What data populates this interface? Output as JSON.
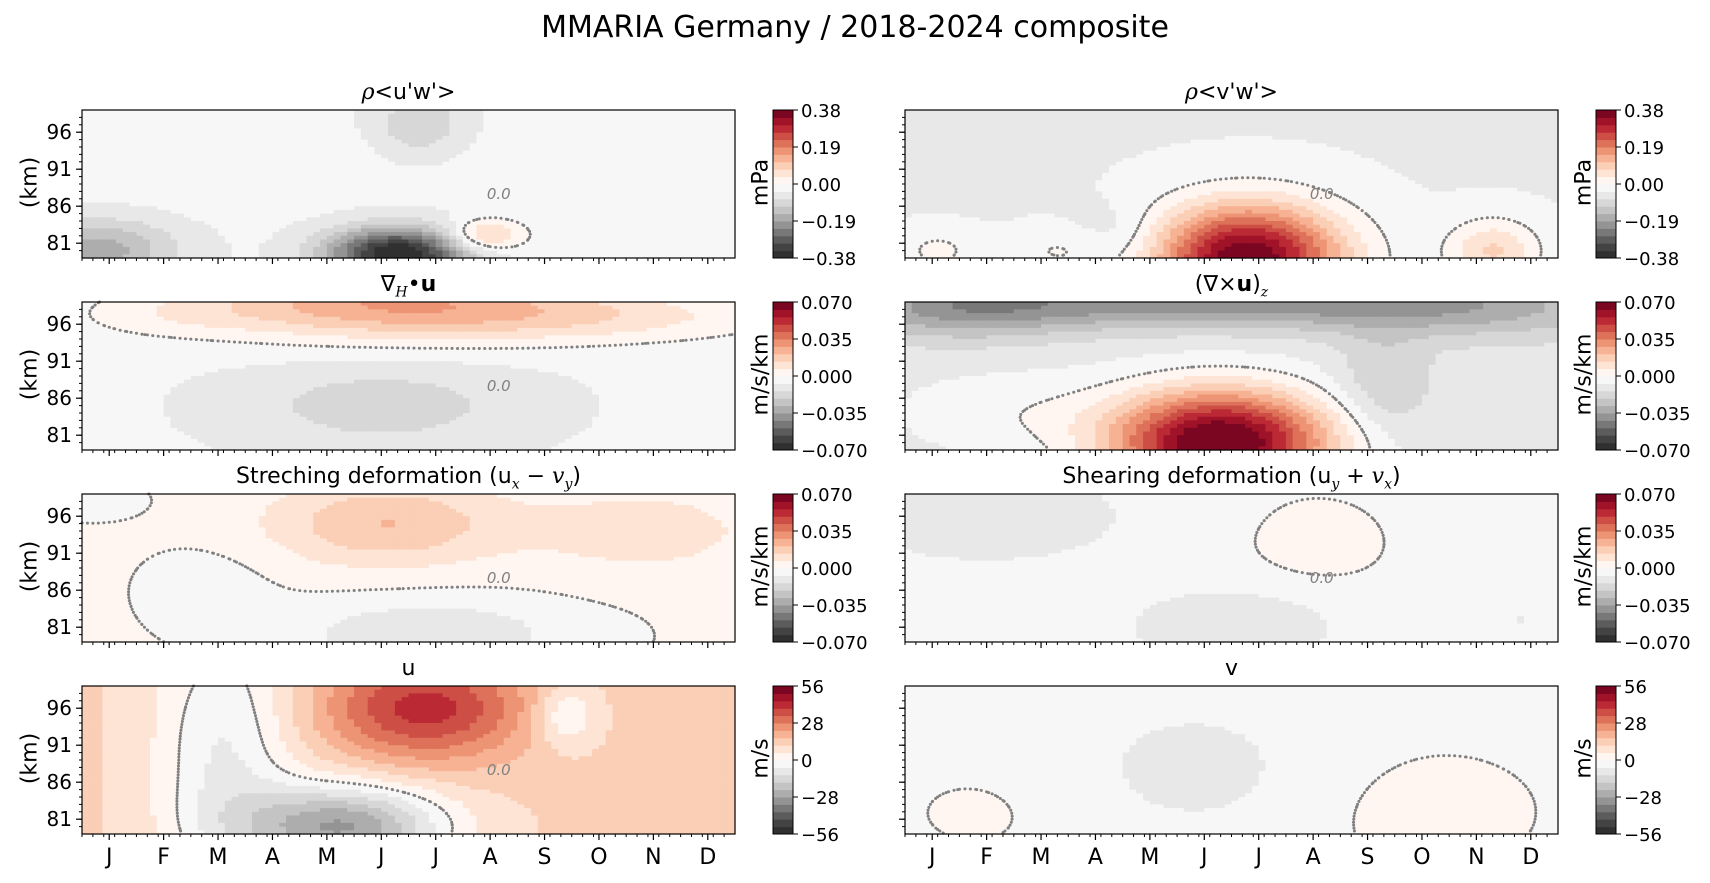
{
  "suptitle": "MMARIA Germany / 2018-2024 composite",
  "chart_data": [
    {
      "type": "heatmap",
      "id": "uw",
      "title": "ρ<u'w'>",
      "ylabel": "(km)",
      "colorbar_label": "mPa",
      "colorbar_ticks": [
        "0.38",
        "0.19",
        "0.00",
        "−0.19",
        "−0.38"
      ],
      "vlim": [
        -0.38,
        0.38
      ],
      "yticks": [
        "96",
        "91",
        "86",
        "81"
      ],
      "ylim": [
        79,
        99
      ],
      "xticks": [
        "J",
        "F",
        "M",
        "A",
        "M",
        "J",
        "J",
        "A",
        "S",
        "O",
        "N",
        "D"
      ],
      "background": -0.03,
      "blobs": [
        {
          "month": 5.8,
          "alt": 79.5,
          "sx": 0.9,
          "sy": 2.5,
          "v": -0.36
        },
        {
          "month": 0.3,
          "alt": 80,
          "sx": 1.0,
          "sy": 3,
          "v": -0.14
        },
        {
          "month": 7.4,
          "alt": 82,
          "sx": 0.5,
          "sy": 1.5,
          "v": 0.14
        },
        {
          "month": 6.2,
          "alt": 97,
          "sx": 0.6,
          "sy": 3,
          "v": -0.08
        },
        {
          "month": 2.5,
          "alt": 92,
          "sx": 2.0,
          "sy": 4,
          "v": 0.02
        },
        {
          "month": 9.5,
          "alt": 92,
          "sx": 1.5,
          "sy": 4,
          "v": 0.02
        }
      ],
      "contour_label": "0.0"
    },
    {
      "type": "heatmap",
      "id": "vw",
      "title": "ρ<v'w'>",
      "ylabel": "",
      "colorbar_label": "mPa",
      "colorbar_ticks": [
        "0.38",
        "0.19",
        "0.00",
        "−0.19",
        "−0.38"
      ],
      "vlim": [
        -0.38,
        0.38
      ],
      "yticks": [
        "96",
        "91",
        "86",
        "81"
      ],
      "ylim": [
        79,
        99
      ],
      "xticks": [
        "J",
        "F",
        "M",
        "A",
        "M",
        "J",
        "J",
        "A",
        "S",
        "O",
        "N",
        "D"
      ],
      "background": -0.04,
      "blobs": [
        {
          "month": 6.3,
          "alt": 79,
          "sx": 1.2,
          "sy": 5,
          "v": 0.42
        },
        {
          "month": 10.8,
          "alt": 80,
          "sx": 0.6,
          "sy": 3,
          "v": 0.12
        },
        {
          "month": 0.6,
          "alt": 80,
          "sx": 0.5,
          "sy": 2,
          "v": 0.05
        },
        {
          "month": 2.8,
          "alt": 80,
          "sx": 0.6,
          "sy": 2,
          "v": 0.04
        },
        {
          "month": 4.0,
          "alt": 82,
          "sx": 0.6,
          "sy": 3,
          "v": -0.04
        }
      ],
      "contour_label": "0.0"
    },
    {
      "type": "heatmap",
      "id": "div",
      "title": "∇H•u",
      "ylabel": "(km)",
      "colorbar_label": "m/s/km",
      "colorbar_ticks": [
        "0.070",
        "0.035",
        "0.000",
        "−0.035",
        "−0.070"
      ],
      "vlim": [
        -0.07,
        0.07
      ],
      "yticks": [
        "96",
        "91",
        "86",
        "81"
      ],
      "ylim": [
        79,
        99
      ],
      "xticks": [
        "J",
        "F",
        "M",
        "A",
        "M",
        "J",
        "J",
        "A",
        "S",
        "O",
        "N",
        "D"
      ],
      "background": -0.006,
      "blobs": [
        {
          "month": 5.5,
          "alt": 99,
          "sx": 2.5,
          "sy": 3.5,
          "v": 0.032
        },
        {
          "month": 9.5,
          "alt": 97,
          "sx": 2.5,
          "sy": 2.5,
          "v": 0.014
        },
        {
          "month": 5.5,
          "alt": 85,
          "sx": 1.8,
          "sy": 4,
          "v": -0.012
        },
        {
          "month": 1.5,
          "alt": 97,
          "sx": 1.2,
          "sy": 2,
          "v": 0.006
        }
      ],
      "contour_label": "0.0"
    },
    {
      "type": "heatmap",
      "id": "curl",
      "title": "(∇×u)z",
      "ylabel": "",
      "colorbar_label": "m/s/km",
      "colorbar_ticks": [
        "0.070",
        "0.035",
        "0.000",
        "−0.035",
        "−0.070"
      ],
      "vlim": [
        -0.07,
        0.07
      ],
      "yticks": [
        "96",
        "91",
        "86",
        "81"
      ],
      "ylim": [
        79,
        99
      ],
      "xticks": [
        "J",
        "F",
        "M",
        "A",
        "M",
        "J",
        "J",
        "A",
        "S",
        "O",
        "N",
        "D"
      ],
      "background": -0.01,
      "blobs": [
        {
          "month": 5.8,
          "alt": 80,
          "sx": 1.4,
          "sy": 5,
          "v": 0.085
        },
        {
          "month": 5.5,
          "alt": 99,
          "sx": 3.5,
          "sy": 2.5,
          "v": -0.03
        },
        {
          "month": 1.0,
          "alt": 98,
          "sx": 1.5,
          "sy": 3,
          "v": -0.02
        },
        {
          "month": 10.5,
          "alt": 98,
          "sx": 2,
          "sy": 3,
          "v": -0.015
        },
        {
          "month": 2.0,
          "alt": 84,
          "sx": 1.5,
          "sy": 4,
          "v": 0.008
        },
        {
          "month": 8.8,
          "alt": 88,
          "sx": 0.6,
          "sy": 5,
          "v": -0.012
        }
      ],
      "contour_label": ""
    },
    {
      "type": "heatmap",
      "id": "stretch",
      "title": "Streching deformation (ux − vy)",
      "ylabel": "(km)",
      "colorbar_label": "m/s/km",
      "colorbar_ticks": [
        "0.070",
        "0.035",
        "0.000",
        "−0.035",
        "−0.070"
      ],
      "vlim": [
        -0.07,
        0.07
      ],
      "yticks": [
        "96",
        "91",
        "86",
        "81"
      ],
      "ylim": [
        79,
        99
      ],
      "xticks": [
        "J",
        "F",
        "M",
        "A",
        "M",
        "J",
        "J",
        "A",
        "S",
        "O",
        "N",
        "D"
      ],
      "background": 0.001,
      "blobs": [
        {
          "month": 5.6,
          "alt": 95,
          "sx": 1.5,
          "sy": 4,
          "v": 0.02
        },
        {
          "month": 10.3,
          "alt": 94,
          "sx": 1.5,
          "sy": 4,
          "v": 0.01
        },
        {
          "month": 6.4,
          "alt": 80,
          "sx": 1.8,
          "sy": 3.5,
          "v": -0.014
        },
        {
          "month": 2.3,
          "alt": 86,
          "sx": 0.8,
          "sy": 4,
          "v": -0.005
        },
        {
          "month": 0.2,
          "alt": 98,
          "sx": 0.8,
          "sy": 2,
          "v": -0.003
        }
      ],
      "contour_label": "0.0"
    },
    {
      "type": "heatmap",
      "id": "shear",
      "title": "Shearing deformation (uy + vx)",
      "ylabel": "",
      "colorbar_label": "m/s/km",
      "colorbar_ticks": [
        "0.070",
        "0.035",
        "0.000",
        "−0.035",
        "−0.070"
      ],
      "vlim": [
        -0.07,
        0.07
      ],
      "yticks": [
        "96",
        "91",
        "86",
        "81"
      ],
      "ylim": [
        79,
        99
      ],
      "xticks": [
        "J",
        "F",
        "M",
        "A",
        "M",
        "J",
        "J",
        "A",
        "S",
        "O",
        "N",
        "D"
      ],
      "background": -0.001,
      "blobs": [
        {
          "month": 1.5,
          "alt": 96,
          "sx": 2.0,
          "sy": 5,
          "v": -0.012
        },
        {
          "month": 6.0,
          "alt": 81,
          "sx": 1.5,
          "sy": 4,
          "v": -0.012
        },
        {
          "month": 11.3,
          "alt": 82,
          "sx": 1.0,
          "sy": 4,
          "v": -0.006
        },
        {
          "month": 7.5,
          "alt": 92,
          "sx": 0.8,
          "sy": 4,
          "v": 0.004
        }
      ],
      "contour_label": "0.0"
    },
    {
      "type": "heatmap",
      "id": "u",
      "title": "u",
      "ylabel": "(km)",
      "colorbar_label": "m/s",
      "colorbar_ticks": [
        "56",
        "28",
        "0",
        "−28",
        "−56"
      ],
      "vlim": [
        -56,
        56
      ],
      "yticks": [
        "96",
        "91",
        "86",
        "81"
      ],
      "ylim": [
        79,
        99
      ],
      "xticks": [
        "J",
        "F",
        "M",
        "A",
        "M",
        "J",
        "J",
        "A",
        "S",
        "O",
        "N",
        "D"
      ],
      "background": 12,
      "blobs": [
        {
          "month": 6.3,
          "alt": 96,
          "sx": 1.3,
          "sy": 5,
          "v": 30
        },
        {
          "month": 4.8,
          "alt": 80,
          "sx": 1.3,
          "sy": 4,
          "v": -40
        },
        {
          "month": 2.6,
          "alt": 90,
          "sx": 0.9,
          "sy": 14,
          "v": -18
        },
        {
          "month": 8.9,
          "alt": 95,
          "sx": 0.4,
          "sy": 3,
          "v": -14
        }
      ],
      "contour_label": "0.0"
    },
    {
      "type": "heatmap",
      "id": "v",
      "title": "v",
      "ylabel": "",
      "colorbar_label": "m/s",
      "colorbar_ticks": [
        "56",
        "28",
        "0",
        "−28",
        "−56"
      ],
      "vlim": [
        -56,
        56
      ],
      "yticks": [
        "96",
        "91",
        "86",
        "81"
      ],
      "ylim": [
        79,
        99
      ],
      "xticks": [
        "J",
        "F",
        "M",
        "A",
        "M",
        "J",
        "J",
        "A",
        "S",
        "O",
        "N",
        "D"
      ],
      "background": -1,
      "blobs": [
        {
          "month": 5.3,
          "alt": 88,
          "sx": 1.8,
          "sy": 8,
          "v": -6
        },
        {
          "month": 9.6,
          "alt": 82,
          "sx": 1.2,
          "sy": 5,
          "v": 4
        },
        {
          "month": 1.5,
          "alt": 82,
          "sx": 1.0,
          "sy": 4,
          "v": 2
        }
      ],
      "contour_label": ""
    }
  ]
}
